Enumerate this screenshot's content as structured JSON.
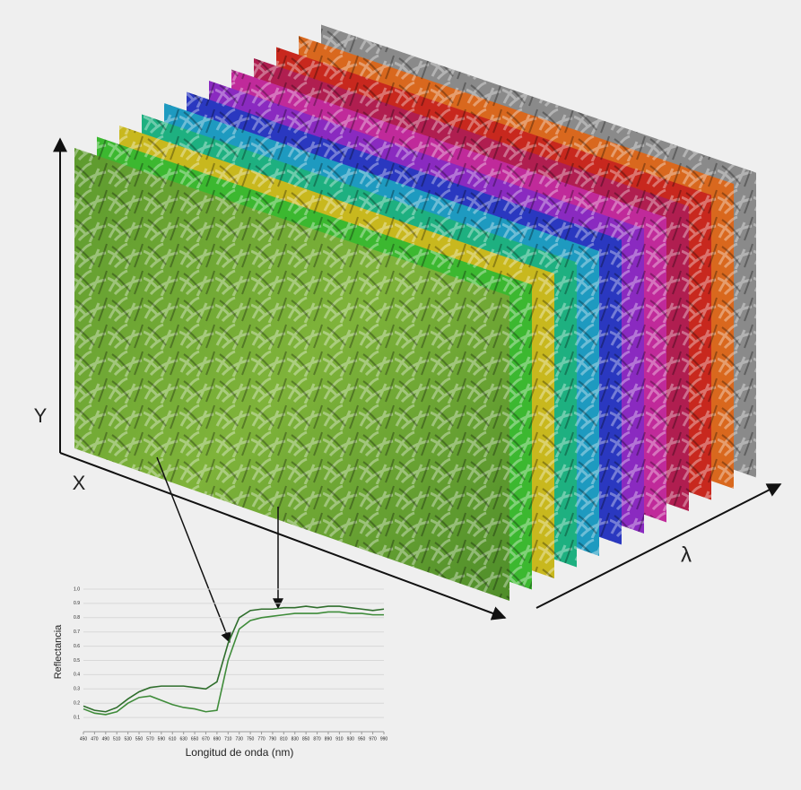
{
  "axes": {
    "y": "Y",
    "x": "X",
    "lambda": "λ"
  },
  "chart_data": {
    "type": "line",
    "x_label": "Longitud de onda (nm)",
    "y_label": "Reflectancia",
    "x": [
      450,
      470,
      490,
      510,
      530,
      550,
      570,
      590,
      610,
      630,
      650,
      670,
      690,
      710,
      730,
      750,
      770,
      790,
      810,
      830,
      850,
      870,
      890,
      910,
      930,
      950,
      970,
      990
    ],
    "series": [
      {
        "color": "#2f6e2c",
        "values": [
          0.18,
          0.15,
          0.14,
          0.17,
          0.23,
          0.28,
          0.31,
          0.32,
          0.32,
          0.32,
          0.31,
          0.3,
          0.35,
          0.62,
          0.8,
          0.85,
          0.86,
          0.86,
          0.87,
          0.87,
          0.88,
          0.87,
          0.88,
          0.88,
          0.87,
          0.86,
          0.85,
          0.86
        ]
      },
      {
        "color": "#3f8c3a",
        "values": [
          0.16,
          0.13,
          0.12,
          0.14,
          0.2,
          0.24,
          0.25,
          0.22,
          0.19,
          0.17,
          0.16,
          0.14,
          0.15,
          0.5,
          0.72,
          0.78,
          0.8,
          0.81,
          0.82,
          0.83,
          0.83,
          0.83,
          0.84,
          0.84,
          0.83,
          0.83,
          0.82,
          0.82
        ]
      }
    ],
    "xlim": [
      450,
      990
    ],
    "ylim": [
      0,
      1
    ],
    "xticks": [
      450,
      470,
      490,
      510,
      530,
      550,
      570,
      590,
      610,
      630,
      650,
      670,
      690,
      710,
      730,
      750,
      770,
      790,
      810,
      830,
      850,
      870,
      890,
      910,
      930,
      950,
      970,
      990
    ],
    "yticks": [
      0.1,
      0.2,
      0.3,
      0.4,
      0.5,
      0.6,
      0.7,
      0.8,
      0.9,
      {
        "value": 1,
        "label": "1.0"
      }
    ],
    "grid": true
  }
}
